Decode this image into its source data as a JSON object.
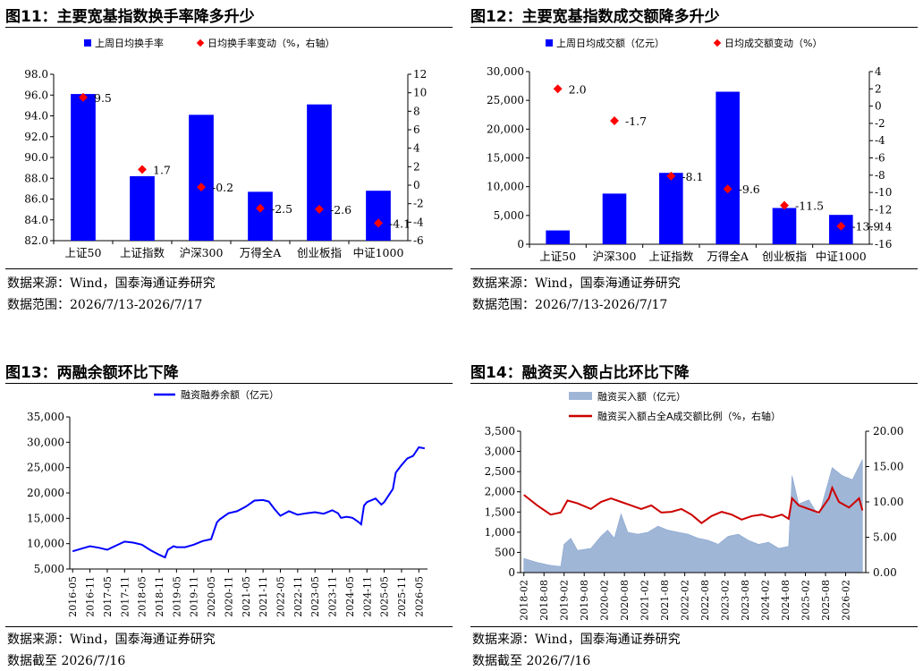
{
  "panels": [
    {
      "title": "图11：主要宽基指数换手率降多升少",
      "source1": "数据来源：Wind，国泰海通证券研究",
      "source2": "数据范围：2026/7/13-2026/7/17"
    },
    {
      "title": "图12：主要宽基指数成交额降多升少",
      "source1": "数据来源：Wind，国泰海通证券研究",
      "source2": "数据范围：2026/7/13-2026/7/17"
    },
    {
      "title": "图13：两融余额环比下降",
      "source1": "数据来源：Wind，国泰海通证券研究",
      "source2": "数据截至 2026/7/16"
    },
    {
      "title": "图14：融资买入额占比环比下降",
      "source1": "数据来源：Wind，国泰海通证券研究",
      "source2": "数据截至 2026/7/16"
    }
  ],
  "chart_data": [
    {
      "type": "bar",
      "categories": [
        "上证50",
        "上证指数",
        "沪深300",
        "万得全A",
        "创业板指",
        "中证1000"
      ],
      "series": [
        {
          "name": "上周日均换手率",
          "kind": "bar",
          "axis": "left",
          "color": "#0000ff",
          "values": [
            96.1,
            88.2,
            94.1,
            86.7,
            95.1,
            86.8
          ]
        },
        {
          "name": "日均换手率变动（%，右轴）",
          "kind": "marker",
          "axis": "right",
          "color": "#ff0000",
          "values": [
            9.5,
            1.7,
            -0.2,
            -2.5,
            -2.6,
            -4.1
          ],
          "labels": [
            "9.5",
            "1.7",
            "-0.2",
            "-2.5",
            "-2.6",
            "-4.1"
          ]
        }
      ],
      "y_left": {
        "range": [
          82,
          98
        ],
        "ticks": [
          "82.0",
          "84.0",
          "86.0",
          "88.0",
          "90.0",
          "92.0",
          "94.0",
          "96.0",
          "98.0"
        ]
      },
      "y_right": {
        "range": [
          -6,
          12
        ],
        "ticks": [
          "-6",
          "-4",
          "-2",
          "0",
          "2",
          "4",
          "6",
          "8",
          "10",
          "12"
        ]
      },
      "legend": "top"
    },
    {
      "type": "bar",
      "categories": [
        "上证50",
        "沪深300",
        "上证指数",
        "万得全A",
        "创业板指",
        "中证1000"
      ],
      "series": [
        {
          "name": "上周日均成交额（亿元）",
          "kind": "bar",
          "axis": "left",
          "color": "#0000ff",
          "values": [
            2400,
            8800,
            12400,
            26500,
            6300,
            5100
          ]
        },
        {
          "name": "日均成交额变动（%）",
          "kind": "marker",
          "axis": "right",
          "color": "#ff0000",
          "values": [
            2.0,
            -1.7,
            -8.1,
            -9.6,
            -11.5,
            -13.9
          ],
          "labels": [
            "2.0",
            "-1.7",
            "-8.1",
            "-9.6",
            "-11.5",
            "-13.9"
          ]
        }
      ],
      "y_left": {
        "range": [
          0,
          30000
        ],
        "ticks": [
          "0",
          "5,000",
          "10,000",
          "15,000",
          "20,000",
          "25,000",
          "30,000"
        ]
      },
      "y_right": {
        "range": [
          -16,
          4
        ],
        "ticks": [
          "-16",
          "-14",
          "-12",
          "-10",
          "-8",
          "-6",
          "-4",
          "-2",
          "0",
          "2",
          "4"
        ]
      },
      "legend": "top"
    },
    {
      "type": "line",
      "series": [
        {
          "name": "融资融券余额（亿元）",
          "color": "#0000ff",
          "x": [
            "2016-05",
            "2016-08",
            "2016-11",
            "2017-02",
            "2017-05",
            "2017-08",
            "2017-11",
            "2018-02",
            "2018-05",
            "2018-08",
            "2018-11",
            "2019-01",
            "2019-02",
            "2019-04",
            "2019-05",
            "2019-08",
            "2019-11",
            "2020-02",
            "2020-05",
            "2020-07",
            "2020-08",
            "2020-11",
            "2021-02",
            "2021-05",
            "2021-08",
            "2021-11",
            "2022-01",
            "2022-03",
            "2022-05",
            "2022-08",
            "2022-11",
            "2023-02",
            "2023-05",
            "2023-08",
            "2023-11",
            "2024-01",
            "2024-02",
            "2024-04",
            "2024-06",
            "2024-08",
            "2024-09",
            "2024-10",
            "2024-11",
            "2025-02",
            "2025-04",
            "2025-05",
            "2025-08",
            "2025-09",
            "2025-11",
            "2026-01",
            "2026-03",
            "2026-05",
            "2026-07"
          ],
          "values": [
            8500,
            9000,
            9500,
            9200,
            8800,
            9600,
            10400,
            10200,
            9800,
            8700,
            7800,
            7300,
            8800,
            9500,
            9300,
            9300,
            9800,
            10500,
            10900,
            14200,
            14800,
            16000,
            16400,
            17300,
            18500,
            18600,
            18300,
            16800,
            15500,
            16400,
            15700,
            16000,
            16200,
            15900,
            16600,
            16000,
            15100,
            15300,
            15100,
            14300,
            13800,
            17500,
            18200,
            18900,
            17700,
            18200,
            20800,
            24000,
            25500,
            26800,
            27300,
            29000,
            28800
          ]
        }
      ],
      "y_range": [
        5000,
        35000
      ],
      "y_ticks": [
        "5,000",
        "10,000",
        "15,000",
        "20,000",
        "25,000",
        "30,000",
        "35,000"
      ],
      "x_ticks": [
        "2016-05",
        "2016-11",
        "2017-05",
        "2017-11",
        "2018-05",
        "2018-11",
        "2019-05",
        "2019-11",
        "2020-05",
        "2020-11",
        "2021-05",
        "2021-11",
        "2022-05",
        "2022-11",
        "2023-05",
        "2023-11",
        "2024-05",
        "2024-11",
        "2025-05",
        "2025-11",
        "2026-05"
      ],
      "legend": "top"
    },
    {
      "type": "area",
      "series": [
        {
          "name": "融资买入额（亿元）",
          "kind": "area",
          "axis": "left",
          "color": "#9fb6d7",
          "x": [
            "2018-02",
            "2018-06",
            "2018-10",
            "2019-01",
            "2019-02",
            "2019-04",
            "2019-06",
            "2019-10",
            "2020-01",
            "2020-03",
            "2020-05",
            "2020-07",
            "2020-09",
            "2020-12",
            "2021-03",
            "2021-06",
            "2021-09",
            "2021-12",
            "2022-03",
            "2022-06",
            "2022-09",
            "2022-12",
            "2023-03",
            "2023-06",
            "2023-09",
            "2023-12",
            "2024-03",
            "2024-06",
            "2024-09",
            "2024-10",
            "2024-12",
            "2025-03",
            "2025-06",
            "2025-08",
            "2025-10",
            "2026-01",
            "2026-04",
            "2026-07"
          ],
          "values": [
            350,
            250,
            180,
            150,
            700,
            850,
            550,
            600,
            900,
            1050,
            850,
            1450,
            1000,
            950,
            1000,
            1150,
            1050,
            1000,
            950,
            850,
            800,
            700,
            900,
            950,
            800,
            700,
            750,
            600,
            650,
            2400,
            1700,
            1800,
            1400,
            2000,
            2600,
            2400,
            2300,
            2800
          ]
        },
        {
          "name": "融资买入额占全A成交额比例（%，右轴）",
          "kind": "line",
          "axis": "right",
          "color": "#cc0000",
          "x": [
            "2018-02",
            "2018-06",
            "2018-10",
            "2019-01",
            "2019-03",
            "2019-06",
            "2019-10",
            "2020-01",
            "2020-04",
            "2020-07",
            "2020-10",
            "2021-01",
            "2021-04",
            "2021-07",
            "2021-10",
            "2022-01",
            "2022-04",
            "2022-07",
            "2022-10",
            "2023-01",
            "2023-04",
            "2023-07",
            "2023-10",
            "2024-01",
            "2024-04",
            "2024-07",
            "2024-09",
            "2024-10",
            "2024-12",
            "2025-03",
            "2025-06",
            "2025-09",
            "2025-10",
            "2025-12",
            "2026-03",
            "2026-06",
            "2026-07"
          ],
          "values": [
            11.0,
            9.5,
            8.2,
            8.5,
            10.2,
            9.8,
            9.0,
            10.0,
            10.5,
            10.0,
            9.5,
            9.0,
            9.5,
            8.5,
            8.6,
            9.0,
            8.2,
            7.0,
            8.0,
            8.6,
            8.2,
            7.5,
            8.0,
            8.2,
            7.8,
            8.2,
            7.6,
            10.5,
            9.5,
            9.0,
            8.5,
            10.5,
            12.0,
            10.0,
            9.2,
            10.5,
            8.8
          ]
        }
      ],
      "y_left": {
        "range": [
          0,
          3500
        ],
        "ticks": [
          "0",
          "500",
          "1,000",
          "1,500",
          "2,000",
          "2,500",
          "3,000",
          "3,500"
        ]
      },
      "y_right": {
        "range": [
          0,
          20
        ],
        "ticks": [
          "0.00",
          "5.00",
          "10.00",
          "15.00",
          "20.00"
        ]
      },
      "x_ticks": [
        "2018-02",
        "2018-08",
        "2019-02",
        "2019-08",
        "2020-02",
        "2020-08",
        "2021-02",
        "2021-08",
        "2022-02",
        "2022-08",
        "2023-02",
        "2023-08",
        "2024-02",
        "2024-08",
        "2025-02",
        "2025-08",
        "2026-02"
      ],
      "legend": "top"
    }
  ]
}
